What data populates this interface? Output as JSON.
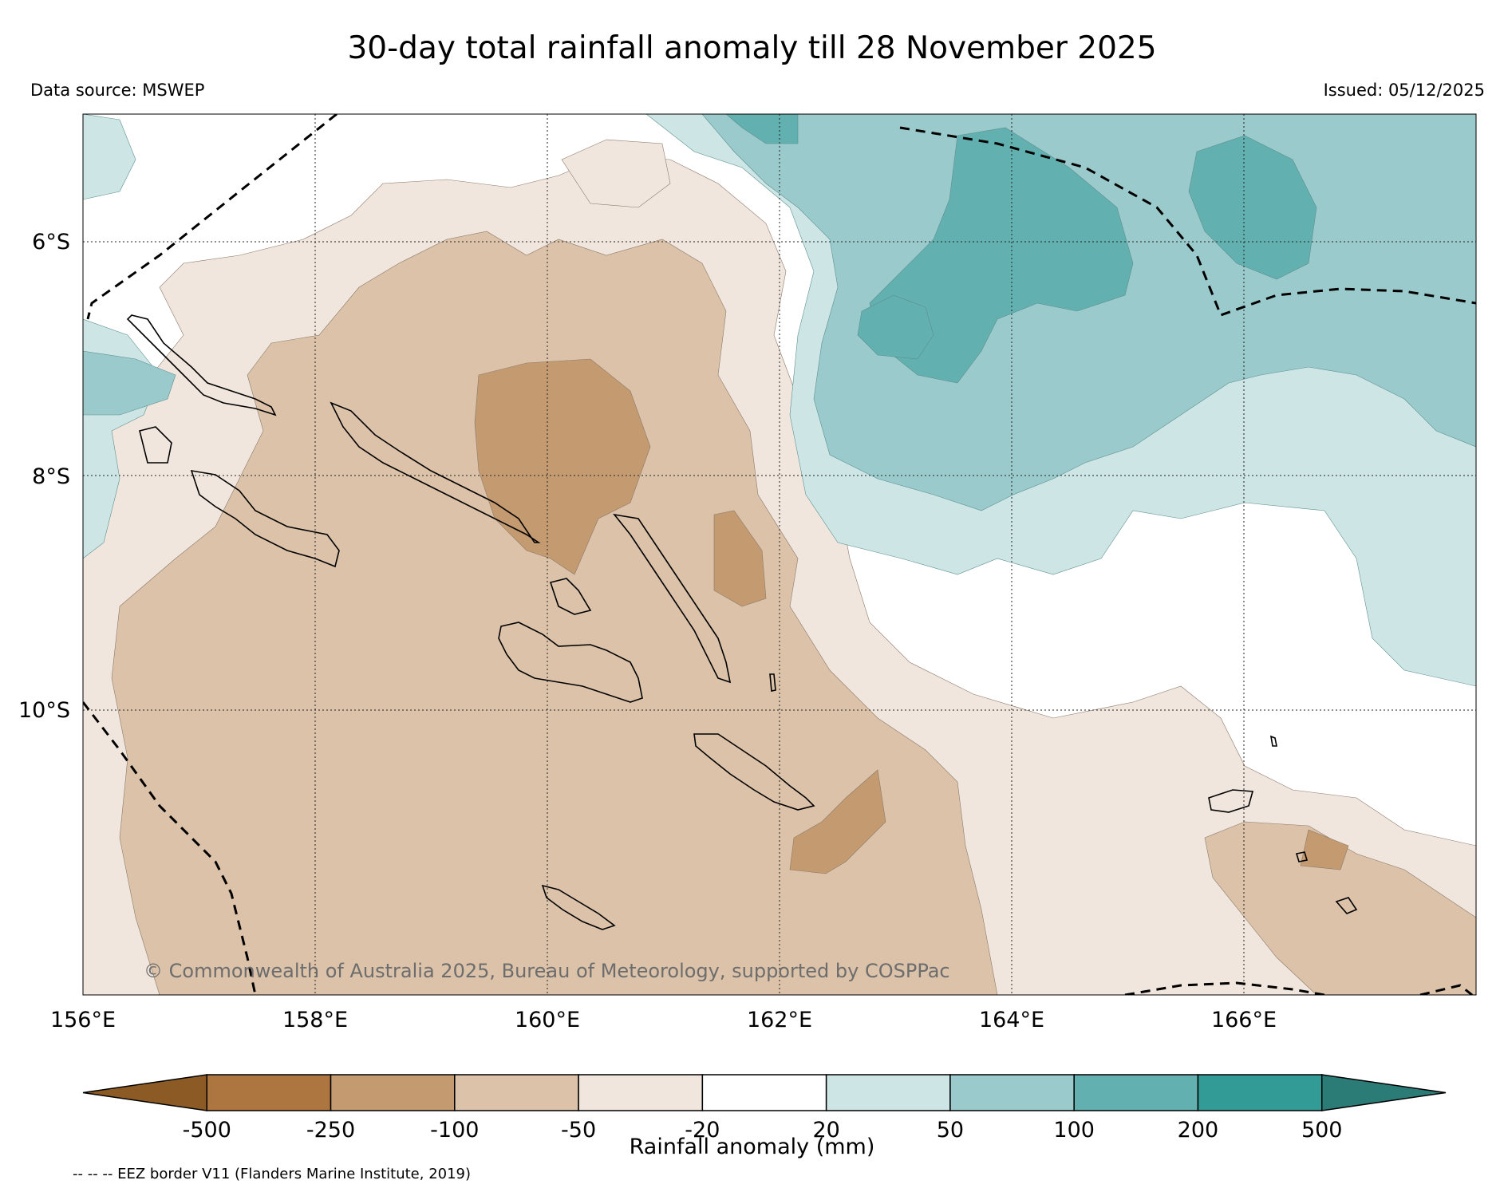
{
  "title": "30-day total rainfall anomaly till 28 November 2025",
  "data_source": "Data source: MSWEP",
  "issued": "Issued: 05/12/2025",
  "copyright": "© Commonwealth of Australia 2025, Bureau of Meteorology, supported by COSPPac",
  "map": {
    "region": "Solomon Islands",
    "lon_range": [
      156,
      168
    ],
    "lat_range": [
      -12.4,
      -4.9
    ],
    "lat_labels": [
      "6°S",
      "8°S",
      "10°S"
    ],
    "lon_labels": [
      "156°E",
      "158°E",
      "160°E",
      "162°E",
      "164°E",
      "166°E"
    ]
  },
  "colorbar": {
    "title": "Rainfall anomaly (mm)",
    "ticks": [
      "-500",
      "-250",
      "-100",
      "-50",
      "-20",
      "20",
      "50",
      "100",
      "200",
      "500"
    ],
    "colors": [
      "#8c5a24",
      "#ad753f",
      "#c49a70",
      "#dbc2a9",
      "#f1e6dd",
      "#ffffff",
      "#cde6e5",
      "#9acacb",
      "#63b0b1",
      "#339b96",
      "#2b7b77"
    ]
  },
  "eez_note": "-- -- -- EEZ border V11 (Flanders Marine Institute, 2019)",
  "colors": {
    "dry_strong": "#c49a70",
    "dry_moderate": "#dbc2a9",
    "dry_light": "#f1e6dd",
    "wet_light": "#cde6e5",
    "wet_moderate": "#9acacb",
    "wet_strong": "#63b0b1"
  }
}
